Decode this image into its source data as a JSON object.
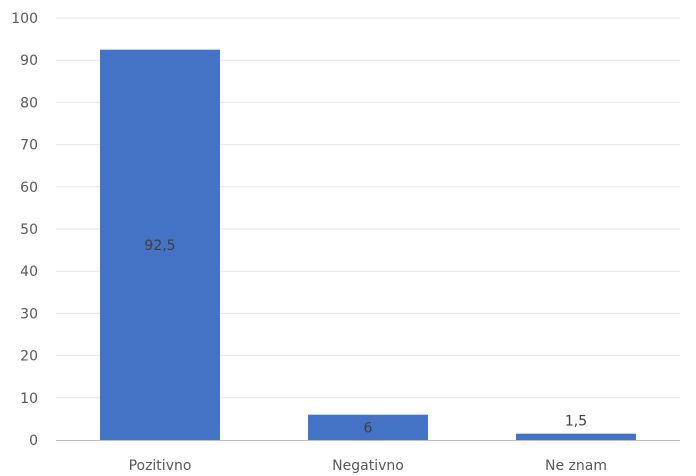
{
  "chart_data": {
    "type": "bar",
    "categories": [
      "Pozitivno",
      "Negativno",
      "Ne znam"
    ],
    "values": [
      92.5,
      6,
      1.5
    ],
    "data_labels": [
      "92,5",
      "6",
      "1,5"
    ],
    "yticks": [
      "0",
      "10",
      "20",
      "30",
      "40",
      "50",
      "60",
      "70",
      "80",
      "90",
      "100"
    ],
    "ylim": [
      0,
      100
    ],
    "grid": true,
    "bar_color": "#4472C4",
    "title": "",
    "xlabel": "",
    "ylabel": ""
  }
}
